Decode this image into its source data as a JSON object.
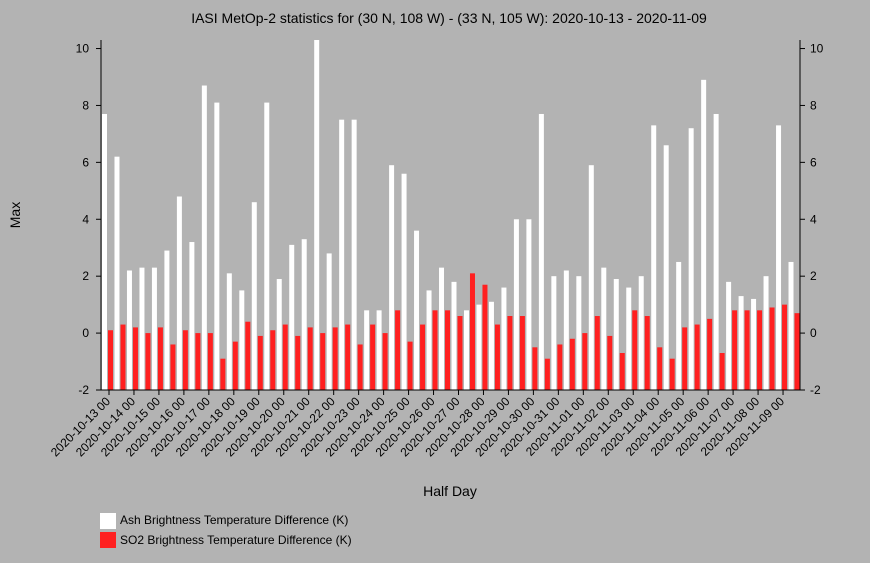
{
  "chart_data": {
    "type": "bar",
    "title": "IASI MetOp-2 statistics for (30 N, 108 W) - (33 N, 105 W): 2020-10-13 - 2020-11-09",
    "xlabel": "Half Day",
    "ylabel": "Max",
    "ylim": [
      -2,
      10.3
    ],
    "yticks": [
      -2,
      0,
      2,
      4,
      6,
      8,
      10
    ],
    "grid": false,
    "legend_position": "bottom-left",
    "categories": [
      "2020-10-13 00",
      "2020-10-13 12",
      "2020-10-14 00",
      "2020-10-14 12",
      "2020-10-15 00",
      "2020-10-15 12",
      "2020-10-16 00",
      "2020-10-16 12",
      "2020-10-17 00",
      "2020-10-17 12",
      "2020-10-18 00",
      "2020-10-18 12",
      "2020-10-19 00",
      "2020-10-19 12",
      "2020-10-20 00",
      "2020-10-20 12",
      "2020-10-21 00",
      "2020-10-21 12",
      "2020-10-22 00",
      "2020-10-22 12",
      "2020-10-23 00",
      "2020-10-23 12",
      "2020-10-24 00",
      "2020-10-24 12",
      "2020-10-25 00",
      "2020-10-25 12",
      "2020-10-26 00",
      "2020-10-26 12",
      "2020-10-27 00",
      "2020-10-27 12",
      "2020-10-28 00",
      "2020-10-28 12",
      "2020-10-29 00",
      "2020-10-29 12",
      "2020-10-30 00",
      "2020-10-30 12",
      "2020-10-31 00",
      "2020-10-31 12",
      "2020-11-01 00",
      "2020-11-01 12",
      "2020-11-02 00",
      "2020-11-02 12",
      "2020-11-03 00",
      "2020-11-03 12",
      "2020-11-04 00",
      "2020-11-04 12",
      "2020-11-05 00",
      "2020-11-05 12",
      "2020-11-06 00",
      "2020-11-06 12",
      "2020-11-07 00",
      "2020-11-07 12",
      "2020-11-08 00",
      "2020-11-08 12",
      "2020-11-09 00",
      "2020-11-09 12"
    ],
    "tick_labels": [
      "2020-10-13 00",
      "2020-10-14 00",
      "2020-10-15 00",
      "2020-10-16 00",
      "2020-10-17 00",
      "2020-10-18 00",
      "2020-10-19 00",
      "2020-10-20 00",
      "2020-10-21 00",
      "2020-10-22 00",
      "2020-10-23 00",
      "2020-10-24 00",
      "2020-10-25 00",
      "2020-10-26 00",
      "2020-10-27 00",
      "2020-10-28 00",
      "2020-10-29 00",
      "2020-10-30 00",
      "2020-10-31 00",
      "2020-11-01 00",
      "2020-11-02 00",
      "2020-11-03 00",
      "2020-11-04 00",
      "2020-11-05 00",
      "2020-11-06 00",
      "2020-11-07 00",
      "2020-11-08 00",
      "2020-11-09 00"
    ],
    "series": [
      {
        "name": "Ash Brightness Temperature Difference (K)",
        "color": "#ffffff",
        "values": [
          7.7,
          6.2,
          2.2,
          2.3,
          2.3,
          2.9,
          4.8,
          3.2,
          8.7,
          8.1,
          2.1,
          1.5,
          4.6,
          8.1,
          1.9,
          3.1,
          3.3,
          10.3,
          2.8,
          7.5,
          7.5,
          0.8,
          0.8,
          5.9,
          5.6,
          3.6,
          1.5,
          2.3,
          1.8,
          0.8,
          1.0,
          1.1,
          1.6,
          4.0,
          4.0,
          7.7,
          2.0,
          2.2,
          2.0,
          5.9,
          2.3,
          1.9,
          1.6,
          2.0,
          7.3,
          6.6,
          2.5,
          7.2,
          8.9,
          7.7,
          1.8,
          1.3,
          1.2,
          2.0,
          7.3,
          2.5
        ]
      },
      {
        "name": "SO2 Brightness Temperature Difference (K)",
        "color": "#ff2020",
        "values": [
          0.1,
          0.3,
          0.2,
          0.0,
          0.2,
          -0.4,
          0.1,
          0.0,
          0.0,
          -0.9,
          -0.3,
          0.4,
          -0.1,
          0.1,
          0.3,
          -0.1,
          0.2,
          0.0,
          0.2,
          0.3,
          -0.4,
          0.3,
          0.0,
          0.8,
          -0.3,
          0.3,
          0.8,
          0.8,
          0.6,
          2.1,
          1.7,
          0.3,
          0.6,
          0.6,
          -0.5,
          -0.9,
          -0.4,
          -0.2,
          0.0,
          0.6,
          -0.1,
          -0.7,
          0.8,
          0.6,
          -0.5,
          -0.9,
          0.2,
          0.3,
          0.5,
          -0.7,
          0.8,
          0.8,
          0.8,
          0.9,
          1.0,
          0.7
        ]
      }
    ]
  }
}
